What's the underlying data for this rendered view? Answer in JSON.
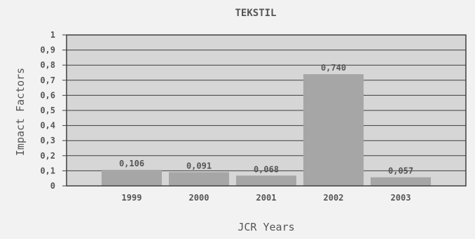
{
  "chart_data": {
    "type": "bar",
    "title": "TEKSTIL",
    "xlabel": "JCR Years",
    "ylabel": "Impact Factors",
    "categories": [
      "1999",
      "2000",
      "2001",
      "2002",
      "2003"
    ],
    "values": [
      0.106,
      0.091,
      0.068,
      0.74,
      0.057
    ],
    "value_labels": [
      "0,106",
      "0,091",
      "0,068",
      "0,740",
      "0,057"
    ],
    "ylim": [
      0,
      1
    ],
    "y_ticks": [
      0,
      0.1,
      0.2,
      0.3,
      0.4,
      0.5,
      0.6,
      0.7,
      0.8,
      0.9,
      1
    ],
    "y_tick_labels": [
      "0",
      "0,1",
      "0,2",
      "0,3",
      "0,4",
      "0,5",
      "0,6",
      "0,7",
      "0,8",
      "0,9",
      "1"
    ],
    "grid": true,
    "legend": "none",
    "colors": {
      "background": "#f2f2f2",
      "plot_background": "#d6d6d6",
      "bar": "#a6a6a6",
      "grid": "#3f3f3f",
      "text": "#555555"
    }
  }
}
